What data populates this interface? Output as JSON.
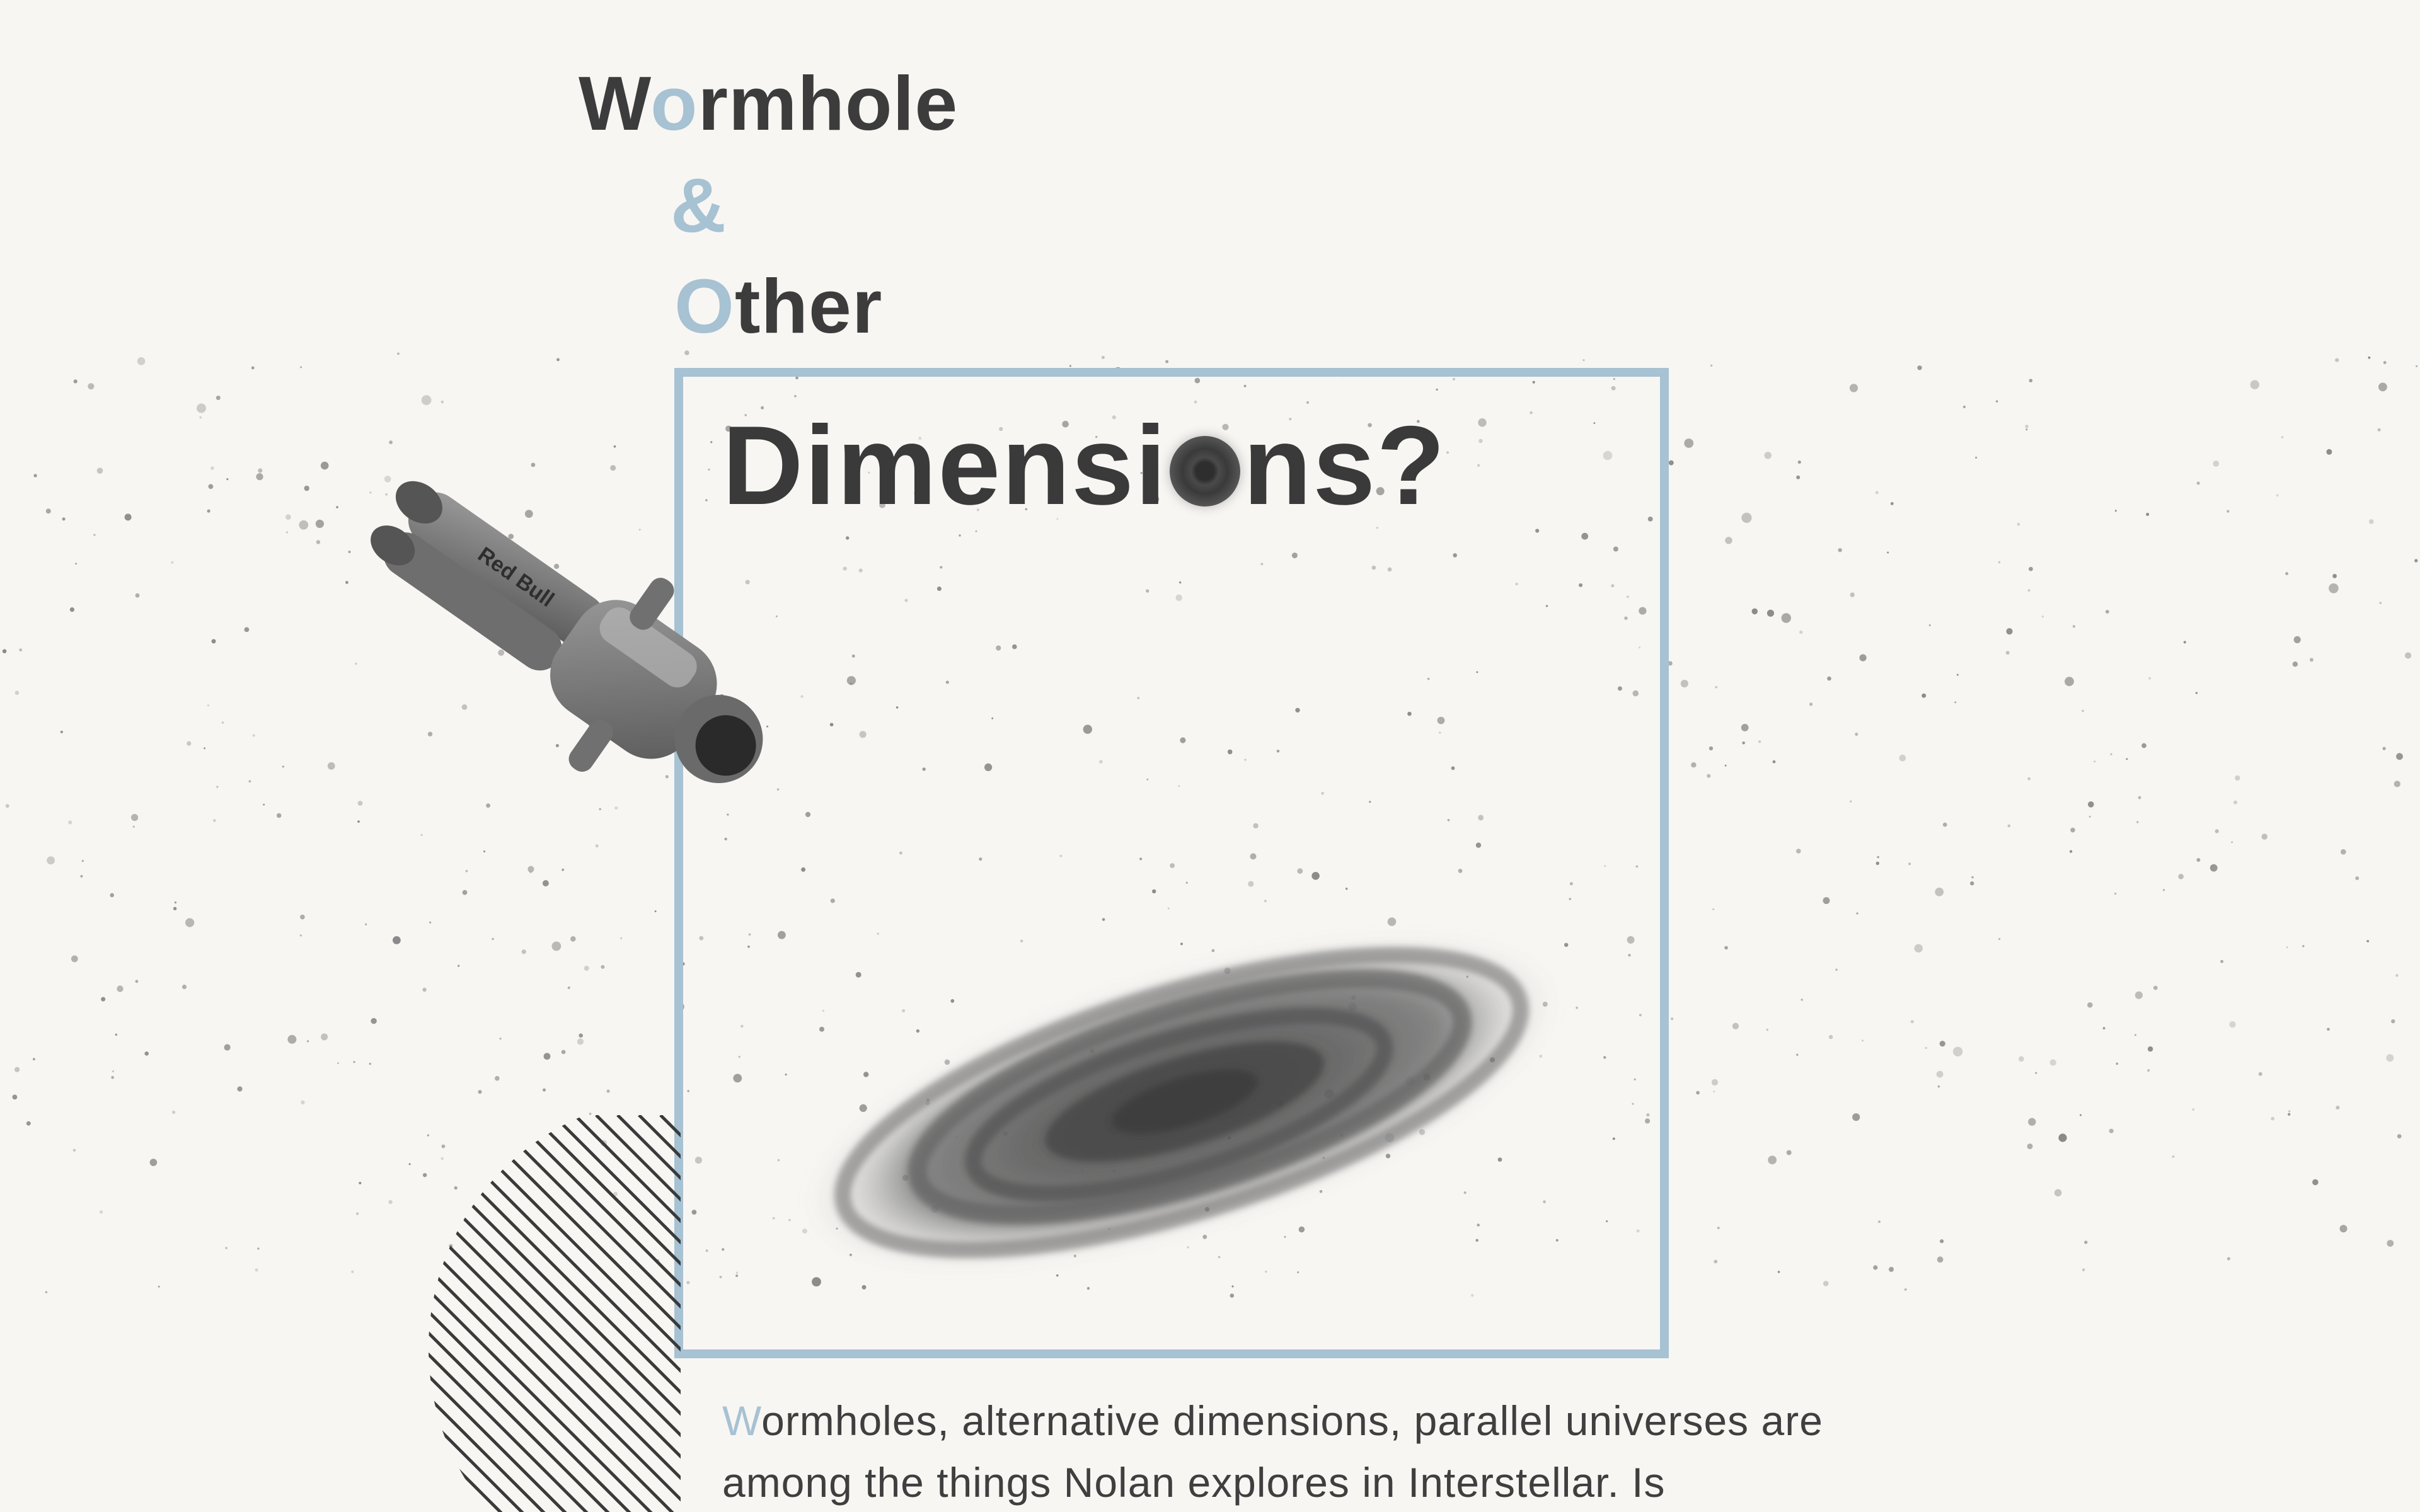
{
  "title": {
    "line1_accent_first": "W",
    "line1_accent": "o",
    "line1_rest": "rmhole",
    "line2": "&",
    "line3_accent": "O",
    "line3_rest": "ther",
    "dimensions_before": "Dimensi",
    "dimensions_after": "ns?"
  },
  "article": {
    "first_letter": "W",
    "text_rest": "ormholes, alternative dimensions, parallel universes are among the things Nolan explores in Interstellar. Is"
  },
  "icons": {
    "astronaut": "astronaut-illustration",
    "galaxy": "spiral-galaxy-illustration",
    "black_hole": "black-hole-letter-o",
    "hatch": "hatched-circle-decoration"
  },
  "astronaut_suit_text": "Red Bull",
  "colors": {
    "background": "#f8f6f3",
    "accent": "#a6c2d3",
    "text": "#3c3c3c"
  }
}
